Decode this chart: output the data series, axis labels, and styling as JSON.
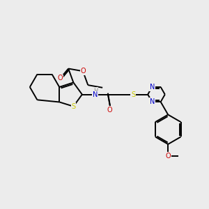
{
  "bg_color": "#ececec",
  "bond_color": "#000000",
  "bond_width": 1.4,
  "atom_colors": {
    "N": "#0000cc",
    "O": "#cc0000",
    "S": "#cccc00",
    "H": "#888888"
  },
  "figsize": [
    3.0,
    3.0
  ],
  "dpi": 100,
  "xlim": [
    0,
    10
  ],
  "ylim": [
    0,
    10
  ]
}
